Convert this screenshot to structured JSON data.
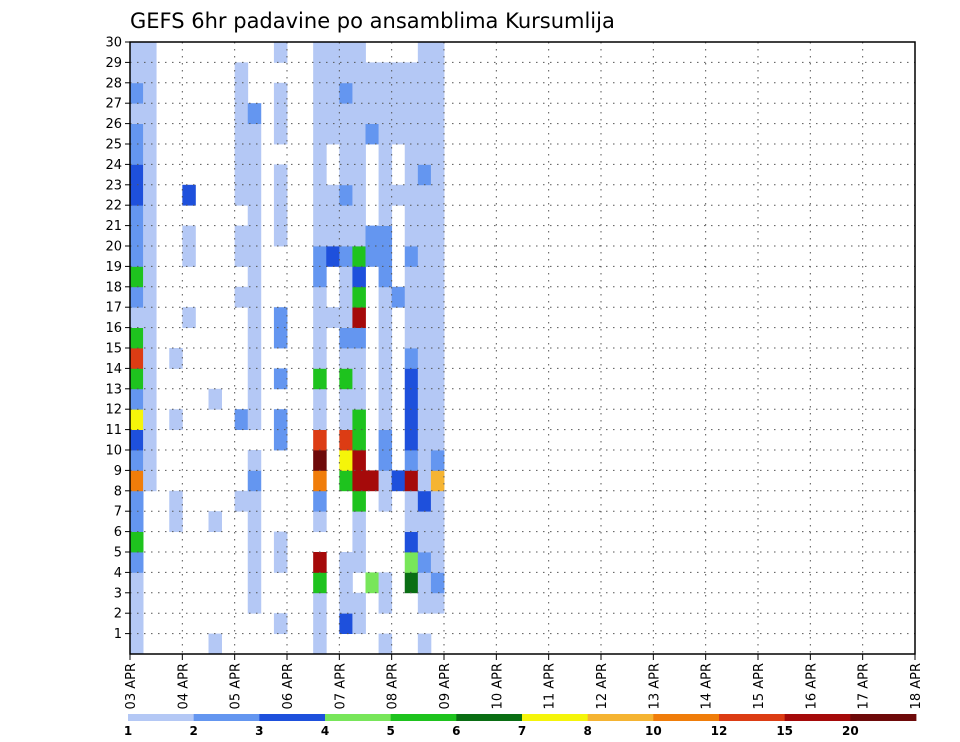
{
  "chart_data": {
    "type": "heatmap",
    "title": "GEFS 6hr padavine po ansamblima Kursumlija",
    "x_tick_labels": [
      "03 APR",
      "04 APR",
      "05 APR",
      "06 APR",
      "07 APR",
      "08 APR",
      "09 APR",
      "10 APR",
      "11 APR",
      "12 APR",
      "13 APR",
      "14 APR",
      "15 APR",
      "16 APR",
      "17 APR",
      "18 APR"
    ],
    "y_tick_labels": [
      "1",
      "2",
      "3",
      "4",
      "5",
      "6",
      "7",
      "8",
      "9",
      "10",
      "11",
      "12",
      "13",
      "14",
      "15",
      "16",
      "17",
      "18",
      "19",
      "20",
      "21",
      "22",
      "23",
      "24",
      "25",
      "26",
      "27",
      "28",
      "29",
      "30"
    ],
    "xlim": [
      0,
      60
    ],
    "ylim": [
      0,
      30
    ],
    "grid": true,
    "legend_position": "bottom",
    "legend_labels": [
      "1",
      "2",
      "3",
      "4",
      "5",
      "6",
      "7",
      "8",
      "10",
      "12",
      "15",
      "20"
    ],
    "legend_colors": [
      "#b4c8f5",
      "#6496f0",
      "#1e50dc",
      "#78e65a",
      "#1ec31e",
      "#0a6e14",
      "#f5f50a",
      "#f5b432",
      "#f07d0a",
      "#dc3c14",
      "#a50a0a",
      "#6e0a0a"
    ],
    "cells": [
      [
        0,
        0,
        1
      ],
      [
        1,
        0,
        1
      ],
      [
        2,
        0,
        1
      ],
      [
        3,
        0,
        1
      ],
      [
        4,
        0,
        2
      ],
      [
        5,
        0,
        5
      ],
      [
        6,
        0,
        2
      ],
      [
        7,
        0,
        2
      ],
      [
        8,
        0,
        9
      ],
      [
        9,
        0,
        2
      ],
      [
        10,
        0,
        3
      ],
      [
        11,
        0,
        7
      ],
      [
        12,
        0,
        2
      ],
      [
        13,
        0,
        5
      ],
      [
        14,
        0,
        10
      ],
      [
        15,
        0,
        5
      ],
      [
        16,
        0,
        1
      ],
      [
        17,
        0,
        2
      ],
      [
        18,
        0,
        5
      ],
      [
        19,
        0,
        2
      ],
      [
        20,
        0,
        2
      ],
      [
        21,
        0,
        2
      ],
      [
        22,
        0,
        3
      ],
      [
        23,
        0,
        3
      ],
      [
        24,
        0,
        2
      ],
      [
        25,
        0,
        2
      ],
      [
        26,
        0,
        1
      ],
      [
        27,
        0,
        2
      ],
      [
        28,
        0,
        1
      ],
      [
        29,
        0,
        1
      ],
      [
        8,
        1,
        1
      ],
      [
        9,
        1,
        1
      ],
      [
        10,
        1,
        1
      ],
      [
        11,
        1,
        1
      ],
      [
        12,
        1,
        1
      ],
      [
        13,
        1,
        1
      ],
      [
        14,
        1,
        1
      ],
      [
        15,
        1,
        1
      ],
      [
        16,
        1,
        1
      ],
      [
        17,
        1,
        1
      ],
      [
        18,
        1,
        1
      ],
      [
        19,
        1,
        1
      ],
      [
        20,
        1,
        1
      ],
      [
        21,
        1,
        1
      ],
      [
        22,
        1,
        1
      ],
      [
        23,
        1,
        1
      ],
      [
        24,
        1,
        1
      ],
      [
        25,
        1,
        1
      ],
      [
        26,
        1,
        1
      ],
      [
        27,
        1,
        1
      ],
      [
        28,
        1,
        1
      ],
      [
        29,
        1,
        1
      ],
      [
        6,
        3,
        1
      ],
      [
        7,
        3,
        1
      ],
      [
        11,
        3,
        1
      ],
      [
        14,
        3,
        1
      ],
      [
        16,
        4,
        1
      ],
      [
        19,
        4,
        1
      ],
      [
        20,
        4,
        1
      ],
      [
        22,
        4,
        3
      ],
      [
        0,
        6,
        1
      ],
      [
        6,
        6,
        1
      ],
      [
        12,
        6,
        1
      ],
      [
        7,
        8,
        1
      ],
      [
        11,
        8,
        2
      ],
      [
        17,
        8,
        1
      ],
      [
        19,
        8,
        1
      ],
      [
        20,
        8,
        1
      ],
      [
        22,
        8,
        1
      ],
      [
        23,
        8,
        1
      ],
      [
        24,
        8,
        1
      ],
      [
        25,
        8,
        1
      ],
      [
        26,
        8,
        1
      ],
      [
        27,
        8,
        1
      ],
      [
        28,
        8,
        1
      ],
      [
        2,
        9,
        1
      ],
      [
        3,
        9,
        1
      ],
      [
        4,
        9,
        1
      ],
      [
        5,
        9,
        1
      ],
      [
        6,
        9,
        1
      ],
      [
        7,
        9,
        1
      ],
      [
        8,
        9,
        2
      ],
      [
        9,
        9,
        1
      ],
      [
        11,
        9,
        1
      ],
      [
        12,
        9,
        1
      ],
      [
        13,
        9,
        1
      ],
      [
        14,
        9,
        1
      ],
      [
        15,
        9,
        1
      ],
      [
        16,
        9,
        1
      ],
      [
        17,
        9,
        1
      ],
      [
        18,
        9,
        1
      ],
      [
        19,
        9,
        1
      ],
      [
        20,
        9,
        1
      ],
      [
        21,
        9,
        1
      ],
      [
        22,
        9,
        1
      ],
      [
        23,
        9,
        1
      ],
      [
        24,
        9,
        1
      ],
      [
        25,
        9,
        1
      ],
      [
        26,
        9,
        2
      ],
      [
        1,
        11,
        1
      ],
      [
        4,
        11,
        1
      ],
      [
        5,
        11,
        1
      ],
      [
        10,
        11,
        2
      ],
      [
        11,
        11,
        2
      ],
      [
        13,
        11,
        2
      ],
      [
        15,
        11,
        2
      ],
      [
        16,
        11,
        2
      ],
      [
        20,
        11,
        1
      ],
      [
        21,
        11,
        1
      ],
      [
        22,
        11,
        1
      ],
      [
        23,
        11,
        1
      ],
      [
        25,
        11,
        1
      ],
      [
        26,
        11,
        1
      ],
      [
        27,
        11,
        1
      ],
      [
        29,
        11,
        1
      ],
      [
        0,
        14,
        1
      ],
      [
        1,
        14,
        1
      ],
      [
        2,
        14,
        1
      ],
      [
        3,
        14,
        5
      ],
      [
        4,
        14,
        11
      ],
      [
        6,
        14,
        1
      ],
      [
        7,
        14,
        2
      ],
      [
        8,
        14,
        9
      ],
      [
        9,
        14,
        12
      ],
      [
        10,
        14,
        10
      ],
      [
        11,
        14,
        1
      ],
      [
        12,
        14,
        1
      ],
      [
        13,
        14,
        5
      ],
      [
        14,
        14,
        1
      ],
      [
        15,
        14,
        1
      ],
      [
        16,
        14,
        1
      ],
      [
        17,
        14,
        1
      ],
      [
        18,
        14,
        2
      ],
      [
        19,
        14,
        2
      ],
      [
        20,
        14,
        1
      ],
      [
        21,
        14,
        1
      ],
      [
        22,
        14,
        1
      ],
      [
        23,
        14,
        1
      ],
      [
        24,
        14,
        1
      ],
      [
        25,
        14,
        1
      ],
      [
        26,
        14,
        1
      ],
      [
        27,
        14,
        1
      ],
      [
        28,
        14,
        1
      ],
      [
        29,
        14,
        1
      ],
      [
        16,
        15,
        1
      ],
      [
        19,
        15,
        3
      ],
      [
        20,
        15,
        1
      ],
      [
        21,
        15,
        1
      ],
      [
        22,
        15,
        1
      ],
      [
        25,
        15,
        1
      ],
      [
        26,
        15,
        1
      ],
      [
        27,
        15,
        1
      ],
      [
        28,
        15,
        1
      ],
      [
        29,
        15,
        1
      ],
      [
        1,
        16,
        3
      ],
      [
        2,
        16,
        1
      ],
      [
        3,
        16,
        1
      ],
      [
        4,
        16,
        1
      ],
      [
        8,
        16,
        5
      ],
      [
        9,
        16,
        7
      ],
      [
        10,
        16,
        10
      ],
      [
        11,
        16,
        1
      ],
      [
        12,
        16,
        1
      ],
      [
        13,
        16,
        5
      ],
      [
        14,
        16,
        1
      ],
      [
        15,
        16,
        2
      ],
      [
        16,
        16,
        1
      ],
      [
        17,
        16,
        1
      ],
      [
        18,
        16,
        1
      ],
      [
        19,
        16,
        2
      ],
      [
        20,
        16,
        1
      ],
      [
        21,
        16,
        1
      ],
      [
        22,
        16,
        2
      ],
      [
        23,
        16,
        1
      ],
      [
        24,
        16,
        1
      ],
      [
        25,
        16,
        1
      ],
      [
        26,
        16,
        1
      ],
      [
        27,
        16,
        2
      ],
      [
        28,
        16,
        1
      ],
      [
        29,
        16,
        1
      ],
      [
        1,
        17,
        1
      ],
      [
        2,
        17,
        1
      ],
      [
        4,
        17,
        1
      ],
      [
        5,
        17,
        1
      ],
      [
        6,
        17,
        1
      ],
      [
        7,
        17,
        5
      ],
      [
        8,
        17,
        11
      ],
      [
        9,
        17,
        11
      ],
      [
        10,
        17,
        5
      ],
      [
        11,
        17,
        5
      ],
      [
        12,
        17,
        1
      ],
      [
        13,
        17,
        1
      ],
      [
        14,
        17,
        1
      ],
      [
        15,
        17,
        2
      ],
      [
        16,
        17,
        11
      ],
      [
        17,
        17,
        5
      ],
      [
        18,
        17,
        3
      ],
      [
        19,
        17,
        5
      ],
      [
        20,
        17,
        1
      ],
      [
        21,
        17,
        1
      ],
      [
        22,
        17,
        1
      ],
      [
        23,
        17,
        1
      ],
      [
        24,
        17,
        1
      ],
      [
        25,
        17,
        1
      ],
      [
        26,
        17,
        1
      ],
      [
        27,
        17,
        1
      ],
      [
        28,
        17,
        1
      ],
      [
        29,
        17,
        1
      ],
      [
        3,
        18,
        4
      ],
      [
        8,
        18,
        11
      ],
      [
        19,
        18,
        2
      ],
      [
        20,
        18,
        2
      ],
      [
        25,
        18,
        2
      ],
      [
        26,
        18,
        1
      ],
      [
        27,
        18,
        1
      ],
      [
        28,
        18,
        1
      ],
      [
        0,
        19,
        1
      ],
      [
        2,
        19,
        1
      ],
      [
        3,
        19,
        1
      ],
      [
        7,
        19,
        1
      ],
      [
        8,
        19,
        1
      ],
      [
        9,
        19,
        2
      ],
      [
        10,
        19,
        2
      ],
      [
        11,
        19,
        1
      ],
      [
        12,
        19,
        1
      ],
      [
        13,
        19,
        1
      ],
      [
        14,
        19,
        1
      ],
      [
        15,
        19,
        1
      ],
      [
        16,
        19,
        1
      ],
      [
        17,
        19,
        1
      ],
      [
        18,
        19,
        2
      ],
      [
        19,
        19,
        2
      ],
      [
        20,
        19,
        2
      ],
      [
        21,
        19,
        1
      ],
      [
        22,
        19,
        1
      ],
      [
        23,
        19,
        1
      ],
      [
        24,
        19,
        1
      ],
      [
        25,
        19,
        1
      ],
      [
        26,
        19,
        1
      ],
      [
        27,
        19,
        1
      ],
      [
        28,
        19,
        1
      ],
      [
        8,
        20,
        3
      ],
      [
        17,
        20,
        2
      ],
      [
        22,
        20,
        1
      ],
      [
        25,
        20,
        1
      ],
      [
        26,
        20,
        1
      ],
      [
        27,
        20,
        1
      ],
      [
        28,
        20,
        1
      ],
      [
        3,
        21,
        6
      ],
      [
        4,
        21,
        4
      ],
      [
        5,
        21,
        3
      ],
      [
        6,
        21,
        1
      ],
      [
        7,
        21,
        1
      ],
      [
        8,
        21,
        11
      ],
      [
        9,
        21,
        2
      ],
      [
        10,
        21,
        3
      ],
      [
        11,
        21,
        3
      ],
      [
        12,
        21,
        3
      ],
      [
        13,
        21,
        3
      ],
      [
        14,
        21,
        2
      ],
      [
        15,
        21,
        1
      ],
      [
        16,
        21,
        1
      ],
      [
        17,
        21,
        1
      ],
      [
        18,
        21,
        1
      ],
      [
        19,
        21,
        2
      ],
      [
        20,
        21,
        1
      ],
      [
        21,
        21,
        1
      ],
      [
        22,
        21,
        1
      ],
      [
        23,
        21,
        1
      ],
      [
        24,
        21,
        1
      ],
      [
        25,
        21,
        1
      ],
      [
        26,
        21,
        1
      ],
      [
        27,
        21,
        1
      ],
      [
        28,
        21,
        1
      ],
      [
        0,
        22,
        1
      ],
      [
        2,
        22,
        1
      ],
      [
        3,
        22,
        1
      ],
      [
        4,
        22,
        2
      ],
      [
        5,
        22,
        1
      ],
      [
        6,
        22,
        1
      ],
      [
        7,
        22,
        3
      ],
      [
        8,
        22,
        1
      ],
      [
        9,
        22,
        1
      ],
      [
        10,
        22,
        1
      ],
      [
        11,
        22,
        1
      ],
      [
        12,
        22,
        1
      ],
      [
        13,
        22,
        1
      ],
      [
        14,
        22,
        1
      ],
      [
        15,
        22,
        1
      ],
      [
        16,
        22,
        1
      ],
      [
        17,
        22,
        1
      ],
      [
        18,
        22,
        1
      ],
      [
        19,
        22,
        1
      ],
      [
        20,
        22,
        1
      ],
      [
        21,
        22,
        1
      ],
      [
        22,
        22,
        1
      ],
      [
        23,
        22,
        2
      ],
      [
        24,
        22,
        1
      ],
      [
        25,
        22,
        1
      ],
      [
        26,
        22,
        1
      ],
      [
        27,
        22,
        1
      ],
      [
        28,
        22,
        1
      ],
      [
        29,
        22,
        1
      ],
      [
        2,
        23,
        1
      ],
      [
        3,
        23,
        2
      ],
      [
        4,
        23,
        1
      ],
      [
        5,
        23,
        1
      ],
      [
        6,
        23,
        1
      ],
      [
        7,
        23,
        1
      ],
      [
        8,
        23,
        8
      ],
      [
        9,
        23,
        2
      ],
      [
        10,
        23,
        1
      ],
      [
        11,
        23,
        1
      ],
      [
        12,
        23,
        1
      ],
      [
        13,
        23,
        1
      ],
      [
        14,
        23,
        1
      ],
      [
        15,
        23,
        1
      ],
      [
        16,
        23,
        1
      ],
      [
        17,
        23,
        1
      ],
      [
        18,
        23,
        1
      ],
      [
        19,
        23,
        1
      ],
      [
        20,
        23,
        1
      ],
      [
        21,
        23,
        1
      ],
      [
        22,
        23,
        1
      ],
      [
        23,
        23,
        1
      ],
      [
        24,
        23,
        1
      ],
      [
        25,
        23,
        1
      ],
      [
        26,
        23,
        1
      ],
      [
        27,
        23,
        1
      ],
      [
        28,
        23,
        1
      ],
      [
        29,
        23,
        1
      ]
    ]
  }
}
